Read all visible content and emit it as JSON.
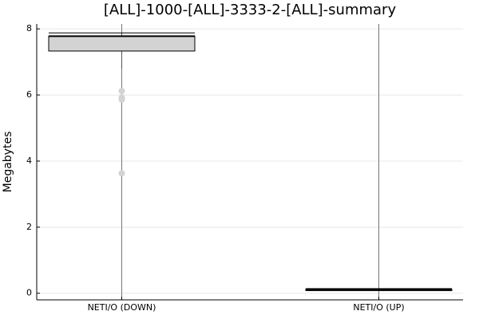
{
  "chart_data": {
    "type": "box",
    "title": "[ALL]-1000-[ALL]-3333-2-[ALL]-summary",
    "y_label": "Megabytes",
    "categories": [
      "NETI/O (DOWN)",
      "NETI/O (UP)"
    ],
    "boxes": [
      {
        "min": 6.8,
        "q1": 7.33,
        "median": 7.78,
        "q3": 7.78,
        "max": 7.88,
        "outliers": [
          6.12,
          5.92,
          5.86,
          3.63
        ]
      },
      {
        "min": 0.06,
        "q1": 0.08,
        "median": 0.1,
        "q3": 0.12,
        "max": 0.14,
        "outliers": []
      }
    ],
    "box_color": "#d3d3d3",
    "outlier_color": "#d3d3d3",
    "ylim": [
      -0.2,
      8.15
    ],
    "yticks": [
      0,
      2,
      4,
      6,
      8
    ],
    "grid": true
  }
}
